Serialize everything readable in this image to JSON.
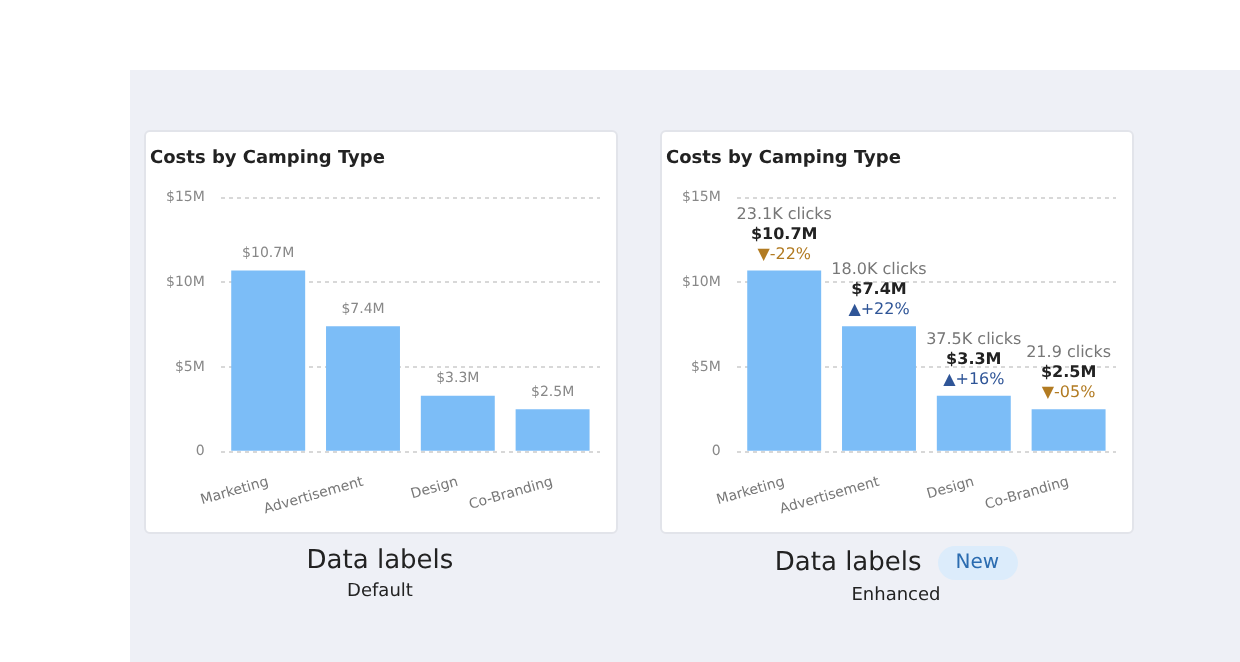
{
  "chart_data": [
    {
      "type": "bar",
      "title": "Costs by Camping Type",
      "categories": [
        "Marketing",
        "Advertisement",
        "Design",
        "Co-Branding"
      ],
      "values": [
        10.7,
        7.4,
        3.3,
        2.5
      ],
      "color": "#7cbdf7",
      "value_labels": [
        "$10.7M",
        "$7.4M",
        "$3.3M",
        "$2.5M"
      ],
      "ylim": [
        0,
        15
      ],
      "yticks": [
        {
          "value": 0,
          "label": "0"
        },
        {
          "value": 5,
          "label": "$5M"
        },
        {
          "value": 10,
          "label": "$10M"
        },
        {
          "value": 15,
          "label": "$15M"
        }
      ],
      "grid": "y",
      "annotations": [
        "Data labels",
        "Default"
      ]
    },
    {
      "type": "bar",
      "title": "Costs by Camping Type",
      "categories": [
        "Marketing",
        "Advertisement",
        "Design",
        "Co-Branding"
      ],
      "values": [
        10.7,
        7.4,
        3.3,
        2.5
      ],
      "color": "#7cbdf7",
      "value_labels": [
        "$10.7M",
        "$7.4M",
        "$3.3M",
        "$2.5M"
      ],
      "ylim": [
        0,
        15
      ],
      "yticks": [
        {
          "value": 0,
          "label": "0"
        },
        {
          "value": 5,
          "label": "$5M"
        },
        {
          "value": 10,
          "label": "$10M"
        },
        {
          "value": 15,
          "label": "$15M"
        }
      ],
      "grid": "y",
      "annotations": [
        "Data labels",
        "New",
        "Enhanced",
        {
          "text": "23.1K clicks",
          "x": "Marketing",
          "y": 10.7
        },
        {
          "text": "▼-22%",
          "x": "Marketing",
          "y": 10.7
        },
        {
          "text": "18.0K clicks",
          "x": "Advertisement",
          "y": 7.4
        },
        {
          "text": "▲+22%",
          "x": "Advertisement",
          "y": 7.4
        },
        {
          "text": "37.5K clicks",
          "x": "Design",
          "y": 3.3
        },
        {
          "text": "▲+16%",
          "x": "Design",
          "y": 3.3
        },
        {
          "text": "21.9 clicks",
          "x": "Co-Branding",
          "y": 2.5
        },
        {
          "text": "▼-05%",
          "x": "Co-Branding",
          "y": 2.5
        }
      ]
    }
  ]
}
